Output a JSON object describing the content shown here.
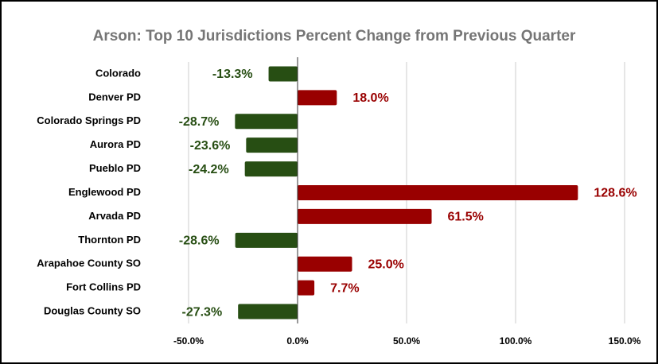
{
  "chart_data": {
    "type": "hbar",
    "title": "Arson: Top 10 Jurisdictions Percent Change from Previous Quarter",
    "categories": [
      "Colorado",
      "Denver PD",
      "Colorado Springs PD",
      "Aurora PD",
      "Pueblo PD",
      "Englewood PD",
      "Arvada PD",
      "Thornton PD",
      "Arapahoe County SO",
      "Fort Collins PD",
      "Douglas County SO"
    ],
    "values": [
      -13.3,
      18.0,
      -28.7,
      -23.6,
      -24.2,
      128.6,
      61.5,
      -28.6,
      25.0,
      7.7,
      -27.3
    ],
    "value_labels": [
      "-13.3%",
      "18.0%",
      "-28.7%",
      "-23.6%",
      "-24.2%",
      "128.6%",
      "61.5%",
      "-28.6%",
      "25.0%",
      "7.7%",
      "-27.3%"
    ],
    "positive_color": "#990000",
    "negative_color": "#274e13",
    "xlim": [
      -50,
      150
    ],
    "xticks": [
      {
        "value": -50,
        "label": "-50.0%"
      },
      {
        "value": 0,
        "label": "0.0%"
      },
      {
        "value": 50,
        "label": "50.0%"
      },
      {
        "value": 100,
        "label": "100.0%"
      },
      {
        "value": 150,
        "label": "150.0%"
      }
    ],
    "grid": true
  }
}
